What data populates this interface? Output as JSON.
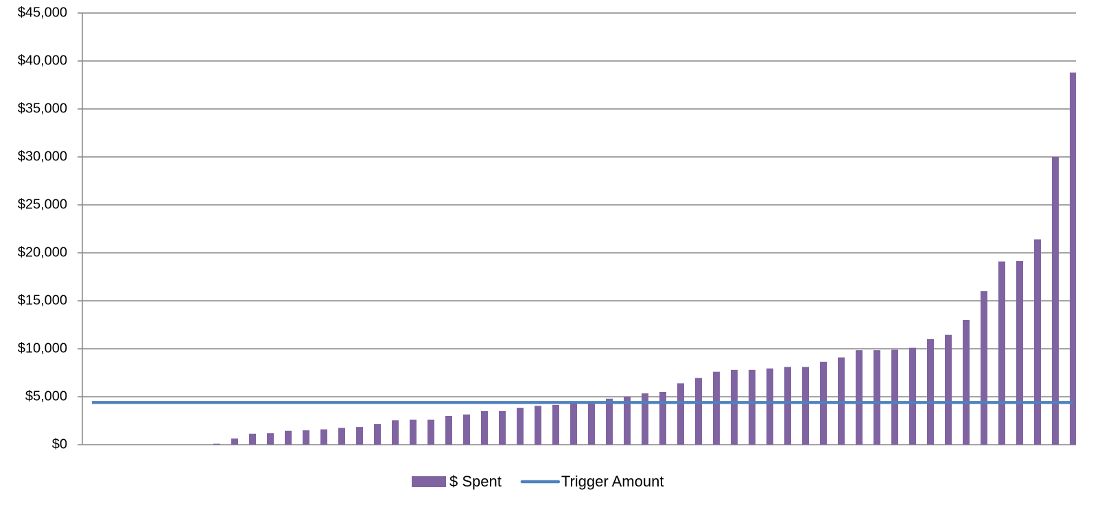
{
  "chart_data": {
    "type": "bar",
    "categories": [
      null,
      null,
      null,
      null,
      null,
      null,
      null,
      null,
      null,
      null,
      null,
      null,
      null,
      null,
      null,
      null,
      null,
      null,
      null,
      null,
      null,
      null,
      null,
      null,
      null,
      null,
      null,
      null,
      null,
      null,
      null,
      null,
      null,
      null,
      null,
      null,
      null,
      null,
      null,
      null,
      null,
      null,
      null,
      null,
      null,
      null,
      null,
      null,
      null,
      null,
      null,
      null,
      null,
      null,
      null,
      null
    ],
    "series": [
      {
        "name": "$ Spent",
        "type": "bar",
        "color": "#8064a2",
        "values": [
          0,
          0,
          0,
          0,
          0,
          0,
          0,
          100,
          650,
          1150,
          1200,
          1450,
          1500,
          1600,
          1750,
          1850,
          2150,
          2550,
          2600,
          2600,
          3000,
          3150,
          3500,
          3500,
          3850,
          4050,
          4150,
          4400,
          4450,
          4800,
          5000,
          5350,
          5500,
          6400,
          6950,
          7600,
          7800,
          7800,
          7950,
          8100,
          8100,
          8650,
          9100,
          9850,
          9850,
          9900,
          10100,
          11000,
          11450,
          13000,
          16000,
          19100,
          19150,
          21400,
          30000,
          38800
        ]
      },
      {
        "name": "Trigger Amount",
        "type": "line",
        "color": "#4f81bd",
        "values": [
          4400,
          4400,
          4400,
          4400,
          4400,
          4400,
          4400,
          4400,
          4400,
          4400,
          4400,
          4400,
          4400,
          4400,
          4400,
          4400,
          4400,
          4400,
          4400,
          4400,
          4400,
          4400,
          4400,
          4400,
          4400,
          4400,
          4400,
          4400,
          4400,
          4400,
          4400,
          4400,
          4400,
          4400,
          4400,
          4400,
          4400,
          4400,
          4400,
          4400,
          4400,
          4400,
          4400,
          4400,
          4400,
          4400,
          4400,
          4400,
          4400,
          4400,
          4400,
          4400,
          4400,
          4400,
          4400,
          4400
        ]
      }
    ],
    "ylim": [
      0,
      45000
    ],
    "yticks": [
      {
        "value": 0,
        "label": "$0"
      },
      {
        "value": 5000,
        "label": "$5,000"
      },
      {
        "value": 10000,
        "label": "$10,000"
      },
      {
        "value": 15000,
        "label": "$15,000"
      },
      {
        "value": 20000,
        "label": "$20,000"
      },
      {
        "value": 25000,
        "label": "$25,000"
      },
      {
        "value": 30000,
        "label": "$30,000"
      },
      {
        "value": 35000,
        "label": "$35,000"
      },
      {
        "value": 40000,
        "label": "$40,000"
      },
      {
        "value": 45000,
        "label": "$45,000"
      }
    ],
    "grid": true,
    "legend": "bottom"
  }
}
